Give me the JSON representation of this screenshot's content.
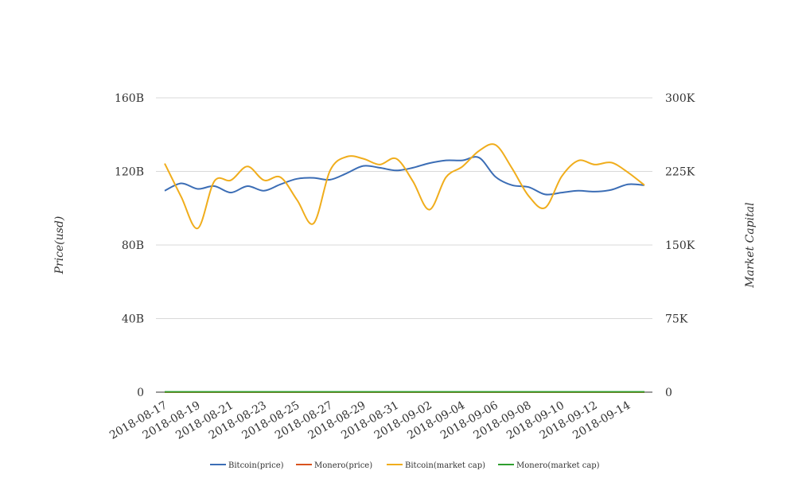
{
  "chart_data": {
    "type": "line",
    "x": [
      "2018-08-17",
      "2018-08-18",
      "2018-08-19",
      "2018-08-20",
      "2018-08-21",
      "2018-08-22",
      "2018-08-23",
      "2018-08-24",
      "2018-08-25",
      "2018-08-26",
      "2018-08-27",
      "2018-08-28",
      "2018-08-29",
      "2018-08-30",
      "2018-08-31",
      "2018-09-01",
      "2018-09-02",
      "2018-09-03",
      "2018-09-04",
      "2018-09-05",
      "2018-09-06",
      "2018-09-07",
      "2018-09-08",
      "2018-09-09",
      "2018-09-10",
      "2018-09-11",
      "2018-09-12",
      "2018-09-13",
      "2018-09-14",
      "2018-09-15"
    ],
    "x_tick_labels": [
      "2018-08-17",
      "2018-08-19",
      "2018-08-21",
      "2018-08-23",
      "2018-08-25",
      "2018-08-27",
      "2018-08-29",
      "2018-08-31",
      "2018-09-02",
      "2018-09-04",
      "2018-09-06",
      "2018-09-08",
      "2018-09-10",
      "2018-09-12",
      "2018-09-14"
    ],
    "ylabel": "Price(usd)",
    "y2label": "Market Capital",
    "ylim": [
      0,
      160000000000
    ],
    "y2lim": [
      0,
      300000
    ],
    "y_ticks": [
      "0",
      "40B",
      "80B",
      "120B",
      "160B"
    ],
    "y2_ticks": [
      "0",
      "75K",
      "150K",
      "225K",
      "300K"
    ],
    "grid": true,
    "legend_position": "bottom",
    "series": [
      {
        "name": "Bitcoin(price)",
        "axis": "left",
        "color": "#3b6db5",
        "values": [
          109500000000,
          113500000000,
          110500000000,
          112000000000,
          108500000000,
          112000000000,
          109500000000,
          113000000000,
          116000000000,
          116500000000,
          115500000000,
          119000000000,
          123000000000,
          122000000000,
          120500000000,
          122000000000,
          124500000000,
          126000000000,
          126000000000,
          127500000000,
          117000000000,
          112500000000,
          111500000000,
          107500000000,
          108500000000,
          109500000000,
          109000000000,
          110000000000,
          113000000000,
          112500000000
        ]
      },
      {
        "name": "Monero(price)",
        "axis": "left",
        "color": "#d9531e",
        "values": [
          100,
          100,
          100,
          100,
          100,
          100,
          100,
          100,
          100,
          100,
          100,
          100,
          100,
          100,
          100,
          100,
          100,
          100,
          100,
          100,
          100,
          100,
          100,
          100,
          100,
          100,
          100,
          100,
          100,
          100
        ]
      },
      {
        "name": "Bitcoin(market cap)",
        "axis": "right",
        "color": "#f0ad1c",
        "values": [
          233000,
          199000,
          167000,
          215000,
          216000,
          230000,
          216000,
          219000,
          196000,
          172000,
          226000,
          240000,
          238000,
          232000,
          238000,
          215000,
          186000,
          219000,
          230000,
          246000,
          252000,
          228000,
          200000,
          188000,
          220000,
          236000,
          232000,
          234000,
          224000,
          211000
        ]
      },
      {
        "name": "Monero(market cap)",
        "axis": "right",
        "color": "#2e9e2e",
        "values": [
          300,
          300,
          300,
          300,
          300,
          300,
          300,
          300,
          300,
          300,
          300,
          300,
          300,
          300,
          300,
          300,
          300,
          300,
          300,
          300,
          300,
          300,
          300,
          300,
          300,
          300,
          300,
          300,
          300,
          300
        ]
      }
    ]
  }
}
